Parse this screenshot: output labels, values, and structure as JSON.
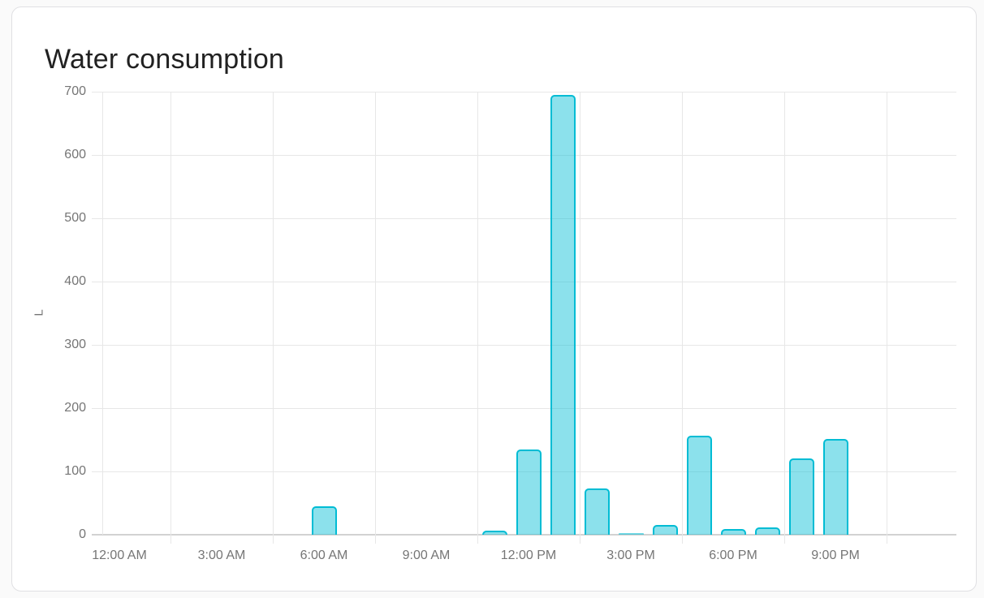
{
  "card": {
    "title": "Water consumption"
  },
  "chart_data": {
    "type": "bar",
    "title": "Water consumption",
    "xlabel": "",
    "ylabel": "L",
    "unit": "L",
    "ylim": [
      0,
      700
    ],
    "y_ticks": [
      0,
      100,
      200,
      300,
      400,
      500,
      600,
      700
    ],
    "grid": true,
    "legend": false,
    "categories": [
      "12:00 AM",
      "1:00 AM",
      "2:00 AM",
      "3:00 AM",
      "4:00 AM",
      "5:00 AM",
      "6:00 AM",
      "7:00 AM",
      "8:00 AM",
      "9:00 AM",
      "10:00 AM",
      "11:00 AM",
      "12:00 PM",
      "1:00 PM",
      "2:00 PM",
      "3:00 PM",
      "4:00 PM",
      "5:00 PM",
      "6:00 PM",
      "7:00 PM",
      "8:00 PM",
      "9:00 PM",
      "10:00 PM",
      "11:00 PM"
    ],
    "values": [
      0,
      0,
      0,
      0,
      0,
      0,
      45,
      0,
      0,
      0,
      0,
      6,
      135,
      695,
      73,
      2,
      16,
      157,
      9,
      12,
      121,
      151,
      0,
      0
    ],
    "x_ticks": [
      {
        "hour": 0,
        "label": "12:00 AM"
      },
      {
        "hour": 3,
        "label": "3:00 AM"
      },
      {
        "hour": 6,
        "label": "6:00 AM"
      },
      {
        "hour": 9,
        "label": "9:00 AM"
      },
      {
        "hour": 12,
        "label": "12:00 PM"
      },
      {
        "hour": 15,
        "label": "3:00 PM"
      },
      {
        "hour": 18,
        "label": "6:00 PM"
      },
      {
        "hour": 21,
        "label": "9:00 PM"
      }
    ],
    "x_gridlines_at_hours": [
      2,
      5,
      8,
      11,
      14,
      17,
      20,
      23
    ]
  },
  "colors": {
    "page-bg": "#fafafa",
    "card-bg": "#ffffff",
    "card-border": "#e0e0e3",
    "title-color": "#212121",
    "tick-color": "#757575",
    "grid-color": "#e7e7e7",
    "axis-zero-color": "#d2d2d2",
    "bar-fill": "rgba(0,188,212,0.45)",
    "bar-border": "#00bcd4",
    "bar-tiny-fill": "rgba(0,188,212,0.55)"
  }
}
